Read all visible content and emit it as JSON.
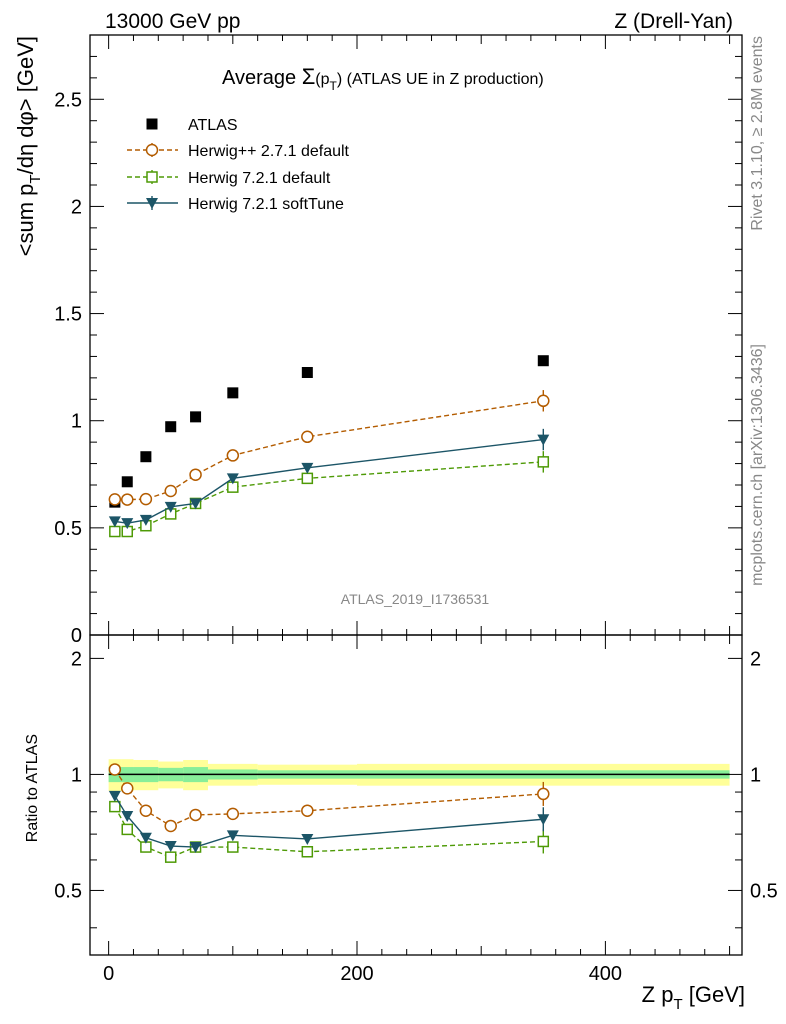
{
  "header": {
    "left": "13000 GeV pp",
    "right": "Z (Drell-Yan)"
  },
  "side_text": {
    "rivet": "Rivet 3.1.10, ≥ 2.8M events",
    "mcplots": "mcplots.cern.ch [arXiv:1306.3436]"
  },
  "watermark": "ATLAS_2019_I1736531",
  "chart_data": {
    "type": "scatter",
    "title_prefix": "Average ",
    "title_sigma": "Σ",
    "title_p": "(p",
    "title_sub": "T",
    "title_close": ")",
    "title_suffix": " (ATLAS UE in Z production)",
    "xlabel": "Z p",
    "xlabel_sub": "T",
    "xlabel_unit": " [GeV]",
    "ylabel_main": "<sum p",
    "ylabel_sub": "T",
    "ylabel_rest": "/dη dφ> [GeV]",
    "ylabel_ratio": "Ratio to ATLAS",
    "xlim": [
      -15,
      510
    ],
    "ylim": [
      0,
      2.8
    ],
    "ratio_ylim": [
      0.34,
      2.3
    ],
    "x": [
      5,
      15,
      30,
      50,
      70,
      100,
      160,
      350
    ],
    "x_ticks": [
      0,
      200,
      400
    ],
    "y_ticks": [
      0.5,
      1,
      1.5,
      2,
      2.5
    ],
    "y_tick_labels": [
      "0.5",
      "1",
      "1.5",
      "2",
      "2.5"
    ],
    "y_zero_label": "0",
    "ratio_ticks": [
      0.5,
      1,
      2
    ],
    "ratio_tick_labels": [
      "0.5",
      "1",
      "2"
    ],
    "band": {
      "edges": [
        0,
        10,
        20,
        40,
        60,
        80,
        120,
        200,
        500
      ],
      "inner": [
        0.045,
        0.045,
        0.045,
        0.04,
        0.045,
        0.03,
        0.025,
        0.025
      ],
      "outer": [
        0.095,
        0.095,
        0.09,
        0.08,
        0.09,
        0.065,
        0.06,
        0.065
      ]
    },
    "series": [
      {
        "name": "ATLAS",
        "color": "#000000",
        "marker": "square-filled",
        "line": "none",
        "values": [
          0.62,
          0.715,
          0.832,
          0.972,
          1.018,
          1.13,
          1.225,
          1.28
        ],
        "ratio": [
          1,
          1,
          1,
          1,
          1,
          1,
          1,
          1
        ]
      },
      {
        "name": "Herwig++ 2.7.1 default",
        "color": "#b35c00",
        "marker": "circle-open",
        "line": "dashed",
        "values": [
          0.633,
          0.632,
          0.634,
          0.672,
          0.748,
          0.838,
          0.925,
          1.093
        ],
        "errors": [
          0.01,
          0.008,
          0.008,
          0.009,
          0.01,
          0.012,
          0.012,
          0.05
        ],
        "ratio": [
          1.03,
          0.92,
          0.805,
          0.735,
          0.785,
          0.79,
          0.805,
          0.89
        ]
      },
      {
        "name": "Herwig 7.2.1 default",
        "color": "#4e9a06",
        "marker": "square-open",
        "line": "dashed",
        "values": [
          0.483,
          0.483,
          0.51,
          0.565,
          0.614,
          0.69,
          0.731,
          0.808
        ],
        "errors": [
          0.008,
          0.008,
          0.008,
          0.009,
          0.01,
          0.012,
          0.012,
          0.05
        ],
        "ratio": [
          0.825,
          0.72,
          0.648,
          0.61,
          0.648,
          0.648,
          0.63,
          0.67
        ]
      },
      {
        "name": "Herwig 7.2.1 softTune",
        "color": "#1c5567",
        "marker": "triangle-down-filled",
        "line": "solid",
        "values": [
          0.53,
          0.522,
          0.537,
          0.598,
          0.614,
          0.731,
          0.78,
          0.912
        ],
        "errors": [
          0.008,
          0.008,
          0.008,
          0.009,
          0.01,
          0.012,
          0.012,
          0.05
        ],
        "ratio": [
          0.88,
          0.78,
          0.685,
          0.652,
          0.648,
          0.695,
          0.68,
          0.765
        ]
      }
    ]
  }
}
